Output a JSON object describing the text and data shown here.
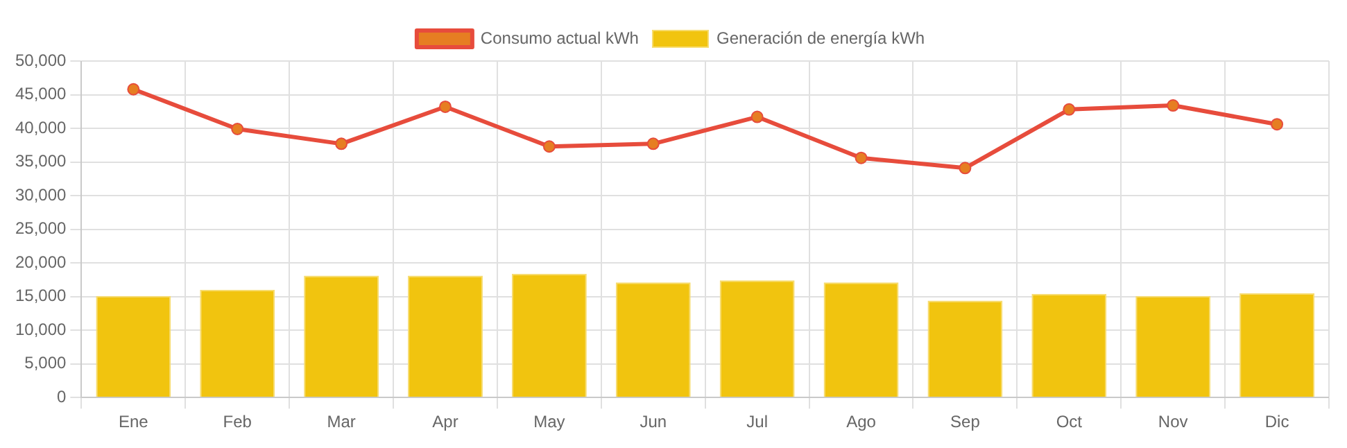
{
  "chart_data": {
    "type": "bar",
    "categories": [
      "Ene",
      "Feb",
      "Mar",
      "Apr",
      "May",
      "Jun",
      "Jul",
      "Ago",
      "Sep",
      "Oct",
      "Nov",
      "Dic"
    ],
    "series": [
      {
        "name": "Consumo actual kWh",
        "type": "line",
        "color": "#e74c3c",
        "marker": "circle",
        "values": [
          45800,
          39900,
          37700,
          43200,
          37300,
          37700,
          41700,
          35600,
          34100,
          42800,
          43400,
          40600
        ]
      },
      {
        "name": "Generación de energía kWh",
        "color": "#f1c40f",
        "values": [
          15100,
          16000,
          18100,
          18100,
          18400,
          17100,
          17400,
          17100,
          14400,
          15400,
          15100,
          15500
        ]
      }
    ],
    "ylim": [
      0,
      50000
    ],
    "yticks": [
      0,
      {
        "value": 5000,
        "label": "5,000"
      },
      {
        "value": 10000,
        "label": "10,000"
      },
      {
        "value": 15000,
        "label": "15,000"
      },
      {
        "value": 20000,
        "label": "20,000"
      },
      {
        "value": 25000,
        "label": "25,000"
      },
      {
        "value": 30000,
        "label": "30,000"
      },
      {
        "value": 35000,
        "label": "35,000"
      },
      {
        "value": 40000,
        "label": "40,000"
      },
      {
        "value": 45000,
        "label": "45,000"
      },
      {
        "value": 50000,
        "label": "50,000"
      }
    ],
    "grid": true,
    "legend": "top"
  }
}
